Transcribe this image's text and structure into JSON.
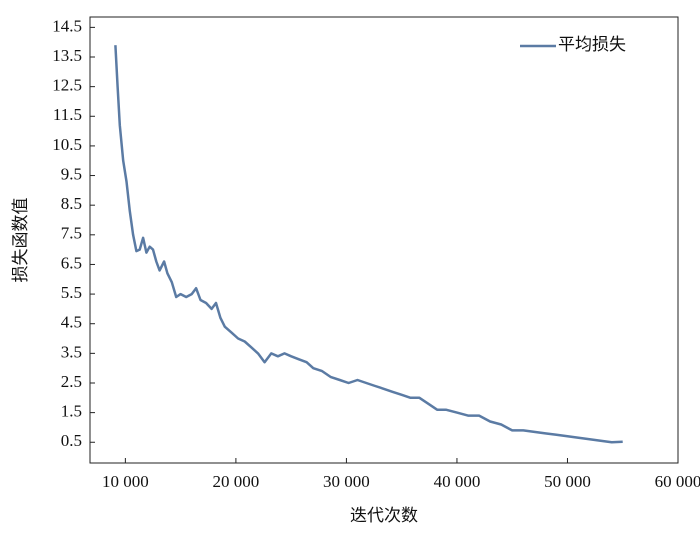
{
  "chart_data": {
    "type": "line",
    "xlabel": "迭代次数",
    "ylabel": "损失函数值",
    "x": [
      9100,
      9300,
      9500,
      9800,
      10100,
      10400,
      10700,
      11000,
      11300,
      11600,
      11900,
      12200,
      12500,
      12800,
      13100,
      13500,
      13800,
      14200,
      14600,
      15000,
      15500,
      16000,
      16400,
      16800,
      17300,
      17800,
      18200,
      18600,
      19000,
      19600,
      20200,
      20800,
      21400,
      22000,
      22600,
      23200,
      23800,
      24400,
      25000,
      25700,
      26400,
      27000,
      27800,
      28600,
      29400,
      30200,
      31000,
      31800,
      32600,
      33400,
      34200,
      35000,
      35800,
      36600,
      37400,
      38200,
      39000,
      40000,
      41000,
      42000,
      43000,
      44000,
      45000,
      46000,
      47000,
      48000,
      49000,
      50000,
      51000,
      52000,
      53000,
      54000,
      55000
    ],
    "series": [
      {
        "name": "平均损失",
        "color": "#5b7ba4",
        "values": [
          13.9,
          12.5,
          11.2,
          10.0,
          9.3,
          8.3,
          7.5,
          6.95,
          7.0,
          7.4,
          6.9,
          7.1,
          7.0,
          6.6,
          6.3,
          6.6,
          6.2,
          5.9,
          5.4,
          5.5,
          5.4,
          5.5,
          5.7,
          5.3,
          5.2,
          5.0,
          5.2,
          4.7,
          4.4,
          4.2,
          4.0,
          3.9,
          3.7,
          3.5,
          3.2,
          3.5,
          3.4,
          3.5,
          3.4,
          3.3,
          3.2,
          3.0,
          2.9,
          2.7,
          2.6,
          2.5,
          2.6,
          2.5,
          2.4,
          2.3,
          2.2,
          2.1,
          2.0,
          2.0,
          1.8,
          1.6,
          1.6,
          1.5,
          1.4,
          1.4,
          1.2,
          1.1,
          0.9,
          0.9,
          0.85,
          0.8,
          0.75,
          0.7,
          0.65,
          0.6,
          0.55,
          0.5,
          0.52
        ]
      }
    ],
    "xlim": [
      6800,
      60000
    ],
    "xticks": [
      {
        "value": 10000,
        "label": "10 000"
      },
      {
        "value": 20000,
        "label": "20 000"
      },
      {
        "value": 30000,
        "label": "30 000"
      },
      {
        "value": 40000,
        "label": "40 000"
      },
      {
        "value": 50000,
        "label": "50 000"
      },
      {
        "value": 60000,
        "label": "60 000"
      }
    ],
    "ylim": [
      -0.2,
      14.85
    ],
    "yticks": [
      0.5,
      1.5,
      2.5,
      3.5,
      4.5,
      5.5,
      6.5,
      7.5,
      8.5,
      9.5,
      10.5,
      11.5,
      12.5,
      13.5,
      14.5
    ],
    "legend": "upper right"
  }
}
